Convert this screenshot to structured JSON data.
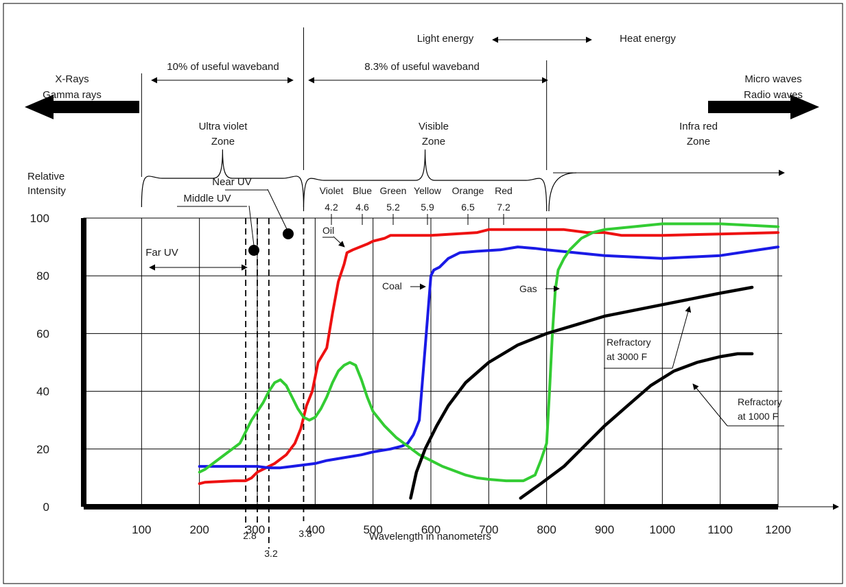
{
  "chart_data": {
    "type": "line",
    "title": "",
    "xlabel": "Wavelength in nanometers",
    "ylabel": "Relative Intensity",
    "ylabel_lines": [
      "Relative",
      "Intensity"
    ],
    "xlim": [
      0,
      1200
    ],
    "ylim": [
      0,
      100
    ],
    "x_ticks": [
      "100",
      "200",
      "300",
      "400",
      "500",
      "600",
      "700",
      "800",
      "900",
      "1000",
      "1100",
      "1200"
    ],
    "y_ticks": [
      "100",
      "80",
      "60",
      "40",
      "20",
      "0"
    ],
    "grid": true,
    "series": [
      {
        "name": "Oil",
        "color": "#ee1111",
        "x": [
          200,
          210,
          260,
          280,
          290,
          300,
          310,
          330,
          350,
          365,
          375,
          380,
          385,
          395,
          405,
          420,
          430,
          440,
          450,
          455,
          465,
          490,
          500,
          520,
          530,
          550,
          600,
          680,
          700,
          760,
          800,
          830,
          870,
          900,
          930,
          1000,
          1100,
          1200
        ],
        "y": [
          8,
          8.5,
          9,
          9,
          10,
          12,
          13,
          15,
          18,
          22,
          27,
          31,
          35,
          40,
          50,
          55,
          67,
          78,
          84,
          88,
          89,
          91,
          92,
          93,
          94,
          94,
          94,
          95,
          96,
          96,
          96,
          96,
          95,
          95,
          94,
          94,
          94.5,
          95
        ]
      },
      {
        "name": "Coal",
        "color": "#1a1ae6",
        "x": [
          200,
          250,
          280,
          300,
          320,
          340,
          360,
          380,
          400,
          420,
          450,
          480,
          500,
          530,
          550,
          560,
          570,
          580,
          590,
          600,
          605,
          615,
          630,
          650,
          680,
          720,
          750,
          780,
          800,
          850,
          900,
          950,
          1000,
          1050,
          1100,
          1150,
          1200
        ],
        "y": [
          14,
          14,
          14,
          14,
          13.5,
          13.5,
          14,
          14.5,
          15,
          16,
          17,
          18,
          19,
          20,
          21,
          22,
          25,
          30,
          55,
          80,
          82,
          83,
          86,
          88,
          88.5,
          89,
          90,
          89.5,
          89,
          88,
          87,
          86.5,
          86,
          86.5,
          87,
          88.5,
          90
        ]
      },
      {
        "name": "Gas",
        "color": "#33cc33",
        "x": [
          200,
          210,
          230,
          250,
          270,
          290,
          310,
          320,
          330,
          340,
          350,
          360,
          370,
          380,
          390,
          400,
          410,
          420,
          430,
          440,
          450,
          460,
          470,
          480,
          490,
          500,
          520,
          540,
          560,
          580,
          600,
          620,
          640,
          660,
          680,
          700,
          730,
          760,
          780,
          790,
          800,
          805,
          810,
          815,
          820,
          830,
          840,
          850,
          860,
          870,
          880,
          900,
          950,
          1000,
          1050,
          1100,
          1150,
          1200
        ],
        "y": [
          12,
          13,
          16,
          19,
          22,
          30,
          36,
          40,
          43,
          44,
          42,
          38,
          34,
          31,
          30,
          31,
          34,
          38,
          43,
          47,
          49,
          50,
          49,
          44,
          38,
          33,
          28,
          24,
          21,
          18,
          16,
          14,
          12.5,
          11,
          10,
          9.5,
          9,
          9,
          11,
          16,
          22,
          40,
          60,
          75,
          82,
          86,
          89,
          91,
          93,
          94,
          95,
          96,
          97,
          98,
          98,
          98,
          97.5,
          97
        ]
      },
      {
        "name": "Refractory at 3000 F",
        "color": "#000000",
        "x": [
          565,
          575,
          590,
          610,
          630,
          660,
          700,
          750,
          800,
          850,
          900,
          950,
          1000,
          1050,
          1100,
          1155
        ],
        "y": [
          3,
          12,
          20,
          28,
          35,
          43,
          50,
          56,
          60,
          63,
          66,
          68,
          70,
          72,
          74,
          76
        ]
      },
      {
        "name": "Refractory at 1000 F",
        "color": "#000000",
        "x": [
          755,
          790,
          830,
          860,
          900,
          940,
          980,
          1020,
          1060,
          1100,
          1130,
          1155
        ],
        "y": [
          3,
          8,
          14,
          20,
          28,
          35,
          42,
          47,
          50,
          52,
          53,
          53
        ]
      }
    ],
    "annotations": {
      "oil": "Oil",
      "coal": "Coal",
      "gas": "Gas",
      "refractory_3000_line1": "Refractory",
      "refractory_3000_line2": "at 3000 F",
      "refractory_1000_line1": "Refractory",
      "refractory_1000_line2": "at 1000 F",
      "far_uv": "Far UV",
      "middle_uv": "Middle UV",
      "near_uv": "Near UV",
      "mark_2_8": "2.8",
      "mark_3_2": "3.2",
      "mark_3_8": "3.8"
    },
    "colors_bar": {
      "labels": [
        "Violet",
        "Blue",
        "Green",
        "Yellow",
        "Orange",
        "Red"
      ],
      "values": [
        "4.2",
        "4.6",
        "5.2",
        "5.9",
        "6.5",
        "7.2"
      ]
    },
    "zones": {
      "uv_line1": "Ultra violet",
      "uv_line2": "Zone",
      "visible_line1": "Visible",
      "visible_line2": "Zone",
      "ir_line1": "Infra red",
      "ir_line2": "Zone",
      "xray_line1": "X-Rays",
      "xray_line2": "Gamma rays",
      "micro_line1": "Micro waves",
      "micro_line2": "Radio waves",
      "uv_band": "10% of useful waveband",
      "visible_band": "8.3% of useful waveband",
      "light_energy": "Light energy",
      "heat_energy": "Heat energy"
    }
  }
}
